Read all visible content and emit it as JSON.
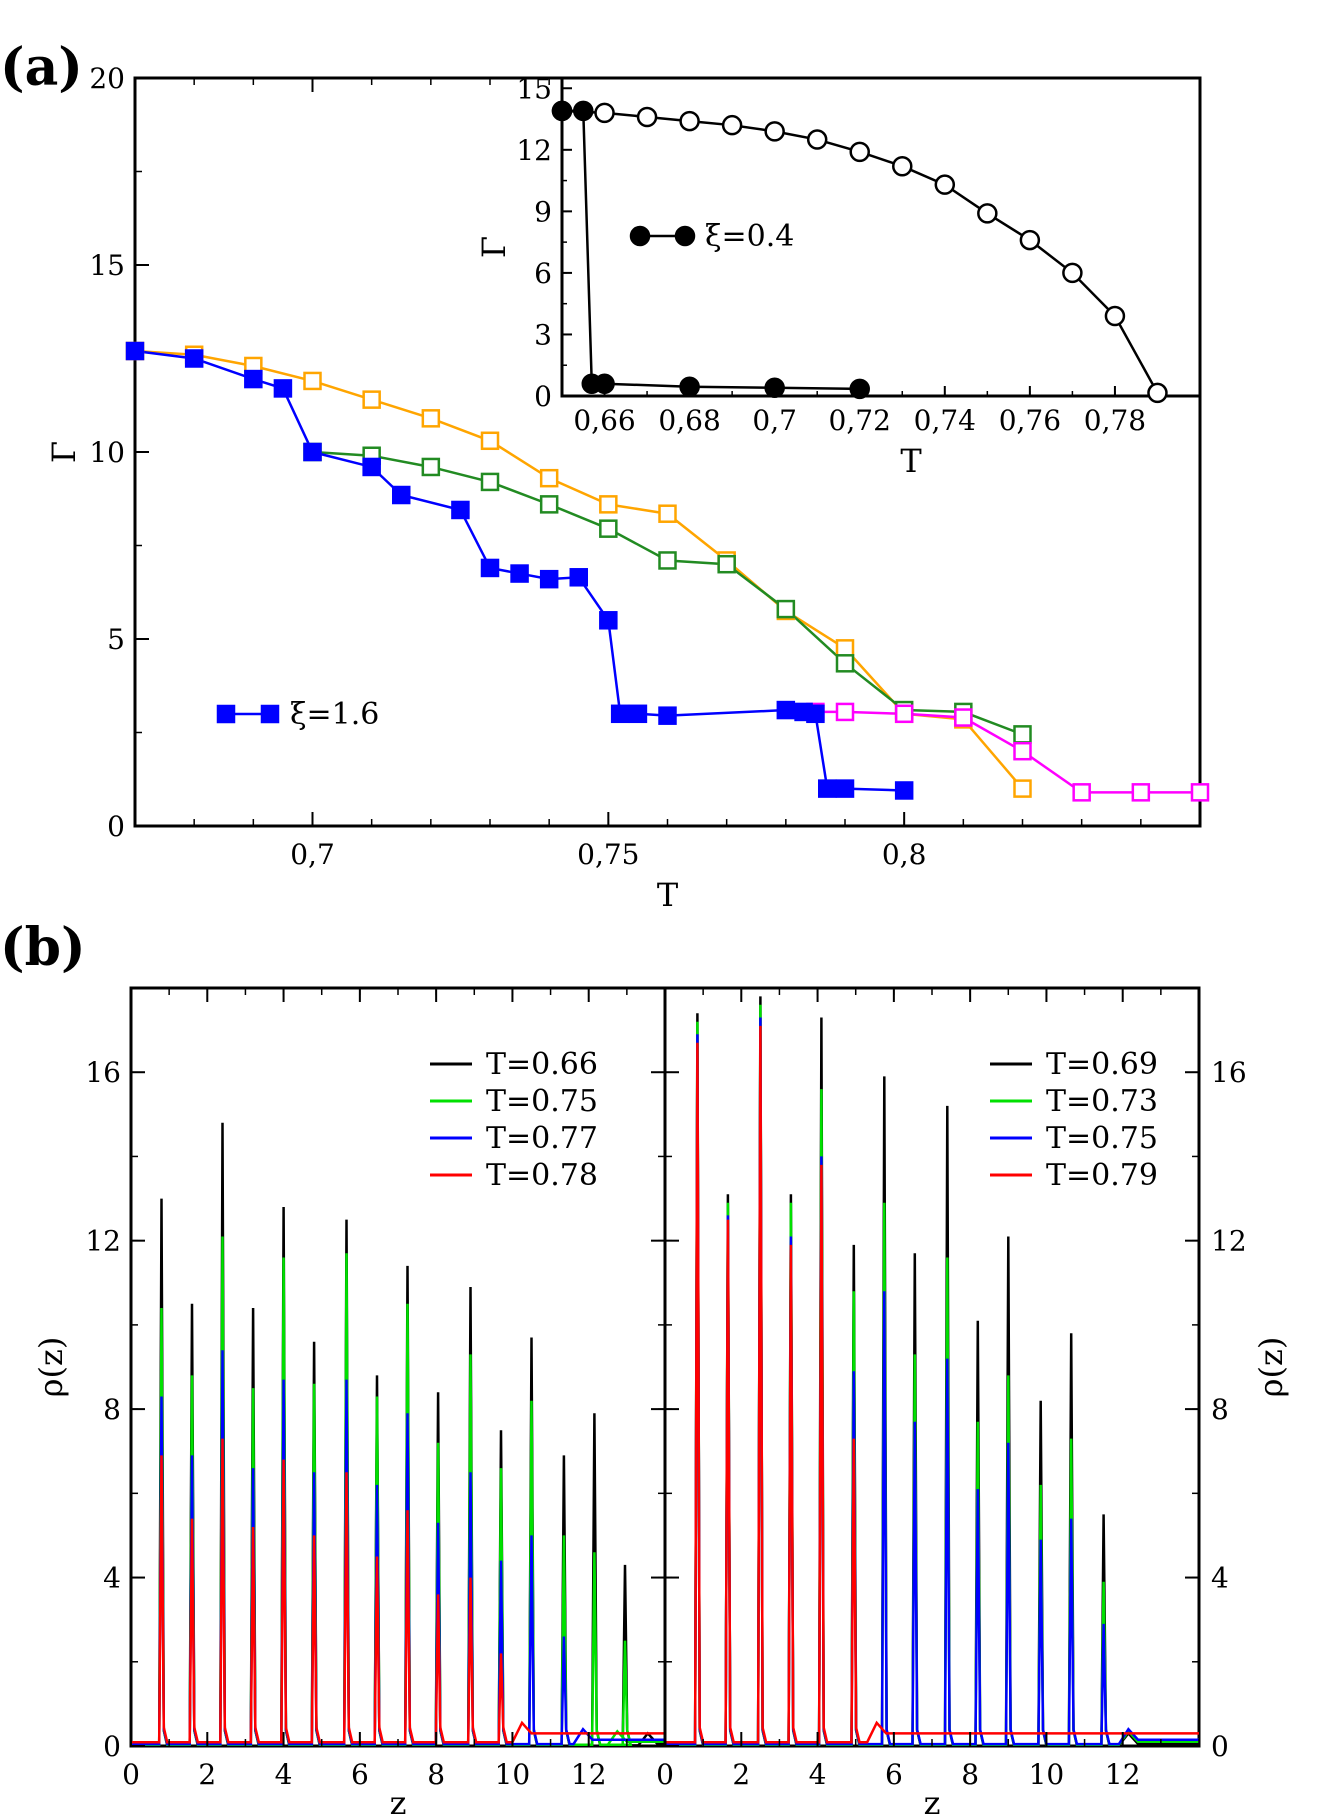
{
  "panel_labels": [
    "(a)",
    "(b)"
  ],
  "chart_data": [
    {
      "id": "a-main",
      "type": "line",
      "xlabel": "T",
      "ylabel": "Γ",
      "xlim": [
        0.67,
        0.85
      ],
      "ylim": [
        0,
        20
      ],
      "xticks": [
        0.7,
        0.75,
        0.8
      ],
      "xtick_labels": [
        "0,7",
        "0,75",
        "0,8"
      ],
      "yticks": [
        0,
        5,
        10,
        15,
        20
      ],
      "ytick_labels": [
        "0",
        "5",
        "10",
        "15",
        "20"
      ],
      "legend": [
        {
          "label": "ξ=1.6",
          "color": "#0000ff",
          "marker": "square-filled"
        }
      ],
      "series": [
        {
          "color": "#ffa500",
          "marker": "square-open",
          "x": [
            0.67,
            0.68,
            0.69,
            0.7,
            0.71,
            0.72,
            0.73,
            0.74,
            0.75,
            0.76,
            0.77,
            0.78,
            0.79,
            0.8,
            0.81,
            0.82
          ],
          "y": [
            12.7,
            12.6,
            12.3,
            11.9,
            11.4,
            10.9,
            10.3,
            9.3,
            8.6,
            8.35,
            7.1,
            5.75,
            4.75,
            3.0,
            2.85,
            1.0
          ]
        },
        {
          "color": "#228b22",
          "marker": "square-open",
          "x": [
            0.7,
            0.71,
            0.72,
            0.73,
            0.74,
            0.75,
            0.76,
            0.77,
            0.78,
            0.79,
            0.8,
            0.81,
            0.82
          ],
          "y": [
            10.0,
            9.9,
            9.6,
            9.2,
            8.6,
            7.95,
            7.1,
            7.0,
            5.8,
            4.35,
            3.1,
            3.05,
            2.45
          ]
        },
        {
          "color": "#ff00ff",
          "marker": "square-open",
          "x": [
            0.785,
            0.79,
            0.8,
            0.81,
            0.82,
            0.83,
            0.84,
            0.85
          ],
          "y": [
            3.05,
            3.05,
            3.0,
            2.9,
            2.0,
            0.9,
            0.9,
            0.9
          ]
        },
        {
          "color": "#0000ff",
          "marker": "square-filled",
          "x": [
            0.67,
            0.68,
            0.69,
            0.695,
            0.7,
            0.71,
            0.715,
            0.725,
            0.73,
            0.735,
            0.74,
            0.745,
            0.75,
            0.752,
            0.755,
            0.76,
            0.78,
            0.783,
            0.785,
            0.787,
            0.79,
            0.8
          ],
          "y": [
            12.7,
            12.5,
            11.95,
            11.7,
            10.0,
            9.6,
            8.85,
            8.45,
            6.9,
            6.75,
            6.6,
            6.65,
            5.5,
            3.0,
            3.0,
            2.95,
            3.1,
            3.05,
            3.0,
            1.0,
            1.0,
            0.95
          ]
        }
      ]
    },
    {
      "id": "a-inset",
      "type": "line",
      "xlabel": "T",
      "ylabel": "Γ",
      "xlim": [
        0.65,
        0.8
      ],
      "ylim": [
        0,
        15.5
      ],
      "xticks": [
        0.66,
        0.68,
        0.7,
        0.72,
        0.74,
        0.76,
        0.78
      ],
      "xtick_labels": [
        "0,66",
        "0,68",
        "0,7",
        "0,72",
        "0,74",
        "0,76",
        "0,78"
      ],
      "yticks": [
        0,
        3,
        6,
        9,
        12,
        15
      ],
      "ytick_labels": [
        "0",
        "3",
        "6",
        "9",
        "12",
        "15"
      ],
      "legend": [
        {
          "label": "ξ=0.4",
          "color": "#000000",
          "marker": "circle-filled"
        }
      ],
      "series": [
        {
          "color": "#000000",
          "marker": "circle-open",
          "x": [
            0.65,
            0.66,
            0.67,
            0.68,
            0.69,
            0.7,
            0.71,
            0.72,
            0.73,
            0.74,
            0.75,
            0.76,
            0.77,
            0.78,
            0.79
          ],
          "y": [
            13.9,
            13.8,
            13.6,
            13.4,
            13.2,
            12.9,
            12.5,
            11.9,
            11.2,
            10.3,
            8.9,
            7.6,
            6.0,
            3.9,
            0.15
          ]
        },
        {
          "color": "#000000",
          "marker": "circle-filled",
          "x": [
            0.65,
            0.655,
            0.657,
            0.66,
            0.68,
            0.7,
            0.72
          ],
          "y": [
            13.9,
            13.9,
            0.6,
            0.6,
            0.45,
            0.4,
            0.35
          ]
        }
      ]
    },
    {
      "id": "b-left",
      "type": "line",
      "xlabel": "z",
      "ylabel": "ρ(z)",
      "xlim": [
        0,
        14
      ],
      "ylim": [
        0,
        18
      ],
      "xticks": [
        0,
        2,
        4,
        6,
        8,
        10,
        12
      ],
      "xtick_labels": [
        "0",
        "2",
        "4",
        "6",
        "8",
        "10",
        "12"
      ],
      "yticks": [
        0,
        4,
        8,
        12,
        16
      ],
      "ytick_labels": [
        "0",
        "4",
        "8",
        "12",
        "16"
      ],
      "peak_z": [
        0.8,
        1.6,
        2.4,
        3.2,
        4.0,
        4.8,
        5.65,
        6.45,
        7.25,
        8.05,
        8.9,
        9.7,
        10.5,
        11.35,
        12.15,
        12.95
      ],
      "peak_width": 0.06,
      "series": [
        {
          "name": "T=0.66",
          "color": "#000000",
          "peaks": [
            13.0,
            10.5,
            14.8,
            10.4,
            12.8,
            9.6,
            12.5,
            8.8,
            11.4,
            8.4,
            10.9,
            7.5,
            9.7,
            6.9,
            7.9,
            4.3
          ],
          "tail_start": 13.3,
          "tail_level": 0.05
        },
        {
          "name": "T=0.75",
          "color": "#00e000",
          "peaks": [
            10.4,
            8.8,
            12.1,
            8.5,
            11.6,
            8.6,
            11.7,
            8.3,
            10.5,
            7.2,
            9.3,
            6.6,
            8.2,
            5.0,
            4.6,
            2.5
          ],
          "tail_start": 12.5,
          "tail_level": 0.1
        },
        {
          "name": "T=0.77",
          "color": "#0000ff",
          "peaks": [
            8.3,
            6.9,
            9.4,
            6.6,
            8.7,
            6.5,
            8.7,
            6.2,
            7.9,
            5.3,
            6.5,
            4.4,
            5.0,
            2.6
          ],
          "tail_start": 11.6,
          "tail_level": 0.15
        },
        {
          "name": "T=0.78",
          "color": "#ff0000",
          "peaks": [
            6.9,
            5.4,
            7.3,
            5.2,
            6.8,
            5.0,
            6.5,
            4.5,
            5.6,
            3.6,
            4.0,
            2.2
          ],
          "tail_start": 10.0,
          "tail_level": 0.3
        }
      ]
    },
    {
      "id": "b-right",
      "type": "line",
      "xlabel": "z",
      "ylabel": "ρ(z)",
      "xlim": [
        0,
        14
      ],
      "ylim": [
        0,
        18
      ],
      "xticks": [
        0,
        2,
        4,
        6,
        8,
        10,
        12
      ],
      "xtick_labels": [
        "0",
        "2",
        "4",
        "6",
        "8",
        "10",
        "12"
      ],
      "yticks": [
        0,
        4,
        8,
        12,
        16
      ],
      "ytick_labels": [
        "0",
        "4",
        "8",
        "12",
        "16"
      ],
      "peak_z": [
        0.85,
        1.65,
        2.5,
        3.3,
        4.1,
        4.95,
        5.75,
        6.55,
        7.4,
        8.2,
        9.0,
        9.85,
        10.65,
        11.5
      ],
      "peak_width": 0.06,
      "series": [
        {
          "name": "T=0.69",
          "color": "#000000",
          "peaks": [
            17.4,
            13.1,
            17.8,
            13.1,
            17.3,
            11.9,
            15.9,
            11.7,
            15.2,
            10.1,
            12.1,
            8.2,
            9.8,
            5.5
          ],
          "tail_start": 11.9,
          "tail_level": 0.05
        },
        {
          "name": "T=0.73",
          "color": "#00e000",
          "peaks": [
            17.2,
            12.9,
            17.6,
            12.9,
            15.6,
            10.8,
            12.9,
            9.3,
            11.6,
            7.7,
            8.8,
            6.2,
            7.3,
            3.9
          ],
          "tail_start": 11.9,
          "tail_level": 0.1
        },
        {
          "name": "T=0.75",
          "color": "#0000ff",
          "peaks": [
            16.9,
            12.6,
            17.3,
            12.1,
            14.0,
            8.9,
            10.8,
            7.7,
            9.2,
            6.1,
            7.2,
            4.9,
            5.4,
            2.9
          ],
          "tail_start": 11.9,
          "tail_level": 0.15
        },
        {
          "name": "T=0.79",
          "color": "#ff0000",
          "peaks": [
            16.7,
            12.5,
            17.1,
            11.9,
            13.8,
            7.3
          ],
          "tail_start": 5.3,
          "tail_level": 0.3
        }
      ]
    }
  ]
}
